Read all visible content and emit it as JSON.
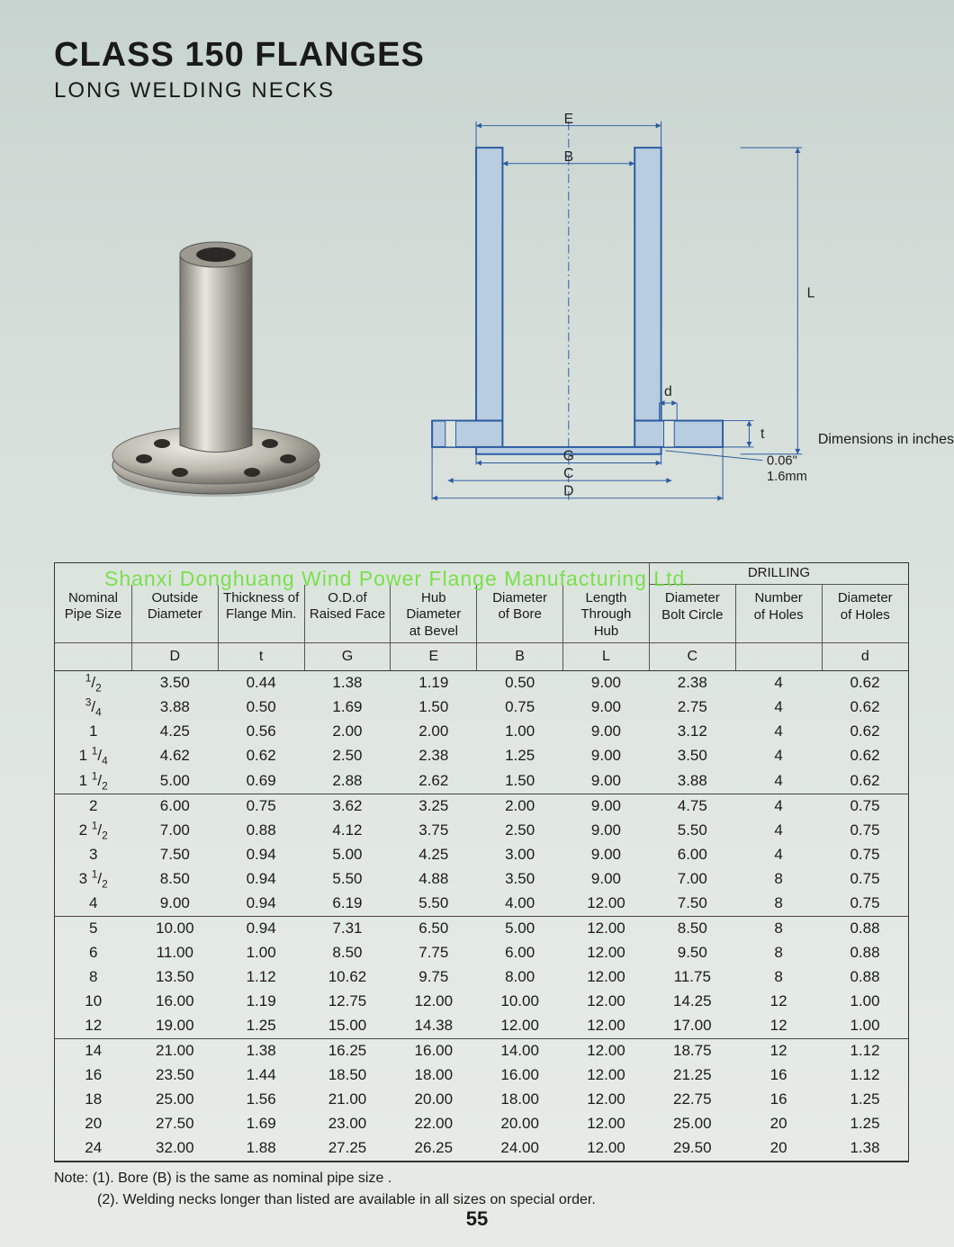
{
  "title": "CLASS 150 FLANGES",
  "subtitle": "LONG WELDING NECKS",
  "dimensions_note": "Dimensions in inches",
  "page_number": "55",
  "watermark": "Shanxi Donghuang Wind Power Flange Manufacturing Ltd.",
  "diagram": {
    "labels": {
      "E": "E",
      "B": "B",
      "L": "L",
      "d": "d",
      "t": "t",
      "G": "G",
      "C": "C",
      "D": "D"
    },
    "raise_face": {
      "line1": "0.06\"",
      "line2": "1.6mm"
    },
    "stroke": "#2b5aa0",
    "fill": "#b9cde0",
    "dimline": "#2b5aa0"
  },
  "table": {
    "drilling_header": "DRILLING",
    "columns": [
      {
        "label": "Nominal\nPipe Size",
        "symbol": ""
      },
      {
        "label": "Outside\nDiameter",
        "symbol": "D"
      },
      {
        "label": "Thickness of\nFlange Min.",
        "symbol": "t"
      },
      {
        "label": "O.D.of\nRaised Face",
        "symbol": "G"
      },
      {
        "label": "Hub Diameter\nat Bevel",
        "symbol": "E"
      },
      {
        "label": "Diameter\nof Bore",
        "symbol": "B"
      },
      {
        "label": "Length\nThrough Hub",
        "symbol": "L"
      },
      {
        "label": "Diameter\nBolt Circle",
        "symbol": "C"
      },
      {
        "label": "Number\nof Holes",
        "symbol": ""
      },
      {
        "label": "Diameter\nof Holes",
        "symbol": "d"
      }
    ],
    "groups": [
      [
        [
          "1/2",
          "3.50",
          "0.44",
          "1.38",
          "1.19",
          "0.50",
          "9.00",
          "2.38",
          "4",
          "0.62"
        ],
        [
          "3/4",
          "3.88",
          "0.50",
          "1.69",
          "1.50",
          "0.75",
          "9.00",
          "2.75",
          "4",
          "0.62"
        ],
        [
          "1",
          "4.25",
          "0.56",
          "2.00",
          "2.00",
          "1.00",
          "9.00",
          "3.12",
          "4",
          "0.62"
        ],
        [
          "1 1/4",
          "4.62",
          "0.62",
          "2.50",
          "2.38",
          "1.25",
          "9.00",
          "3.50",
          "4",
          "0.62"
        ],
        [
          "1 1/2",
          "5.00",
          "0.69",
          "2.88",
          "2.62",
          "1.50",
          "9.00",
          "3.88",
          "4",
          "0.62"
        ]
      ],
      [
        [
          "2",
          "6.00",
          "0.75",
          "3.62",
          "3.25",
          "2.00",
          "9.00",
          "4.75",
          "4",
          "0.75"
        ],
        [
          "2 1/2",
          "7.00",
          "0.88",
          "4.12",
          "3.75",
          "2.50",
          "9.00",
          "5.50",
          "4",
          "0.75"
        ],
        [
          "3",
          "7.50",
          "0.94",
          "5.00",
          "4.25",
          "3.00",
          "9.00",
          "6.00",
          "4",
          "0.75"
        ],
        [
          "3 1/2",
          "8.50",
          "0.94",
          "5.50",
          "4.88",
          "3.50",
          "9.00",
          "7.00",
          "8",
          "0.75"
        ],
        [
          "4",
          "9.00",
          "0.94",
          "6.19",
          "5.50",
          "4.00",
          "12.00",
          "7.50",
          "8",
          "0.75"
        ]
      ],
      [
        [
          "5",
          "10.00",
          "0.94",
          "7.31",
          "6.50",
          "5.00",
          "12.00",
          "8.50",
          "8",
          "0.88"
        ],
        [
          "6",
          "11.00",
          "1.00",
          "8.50",
          "7.75",
          "6.00",
          "12.00",
          "9.50",
          "8",
          "0.88"
        ],
        [
          "8",
          "13.50",
          "1.12",
          "10.62",
          "9.75",
          "8.00",
          "12.00",
          "11.75",
          "8",
          "0.88"
        ],
        [
          "10",
          "16.00",
          "1.19",
          "12.75",
          "12.00",
          "10.00",
          "12.00",
          "14.25",
          "12",
          "1.00"
        ],
        [
          "12",
          "19.00",
          "1.25",
          "15.00",
          "14.38",
          "12.00",
          "12.00",
          "17.00",
          "12",
          "1.00"
        ]
      ],
      [
        [
          "14",
          "21.00",
          "1.38",
          "16.25",
          "16.00",
          "14.00",
          "12.00",
          "18.75",
          "12",
          "1.12"
        ],
        [
          "16",
          "23.50",
          "1.44",
          "18.50",
          "18.00",
          "16.00",
          "12.00",
          "21.25",
          "16",
          "1.12"
        ],
        [
          "18",
          "25.00",
          "1.56",
          "21.00",
          "20.00",
          "18.00",
          "12.00",
          "22.75",
          "16",
          "1.25"
        ],
        [
          "20",
          "27.50",
          "1.69",
          "23.00",
          "22.00",
          "20.00",
          "12.00",
          "25.00",
          "20",
          "1.25"
        ],
        [
          "24",
          "32.00",
          "1.88",
          "27.25",
          "26.25",
          "24.00",
          "12.00",
          "29.50",
          "20",
          "1.38"
        ]
      ]
    ]
  },
  "notes": [
    "Note: (1). Bore (B) is the same as nominal pipe size .",
    "          (2). Welding necks longer than listed are available in all sizes on special order."
  ]
}
